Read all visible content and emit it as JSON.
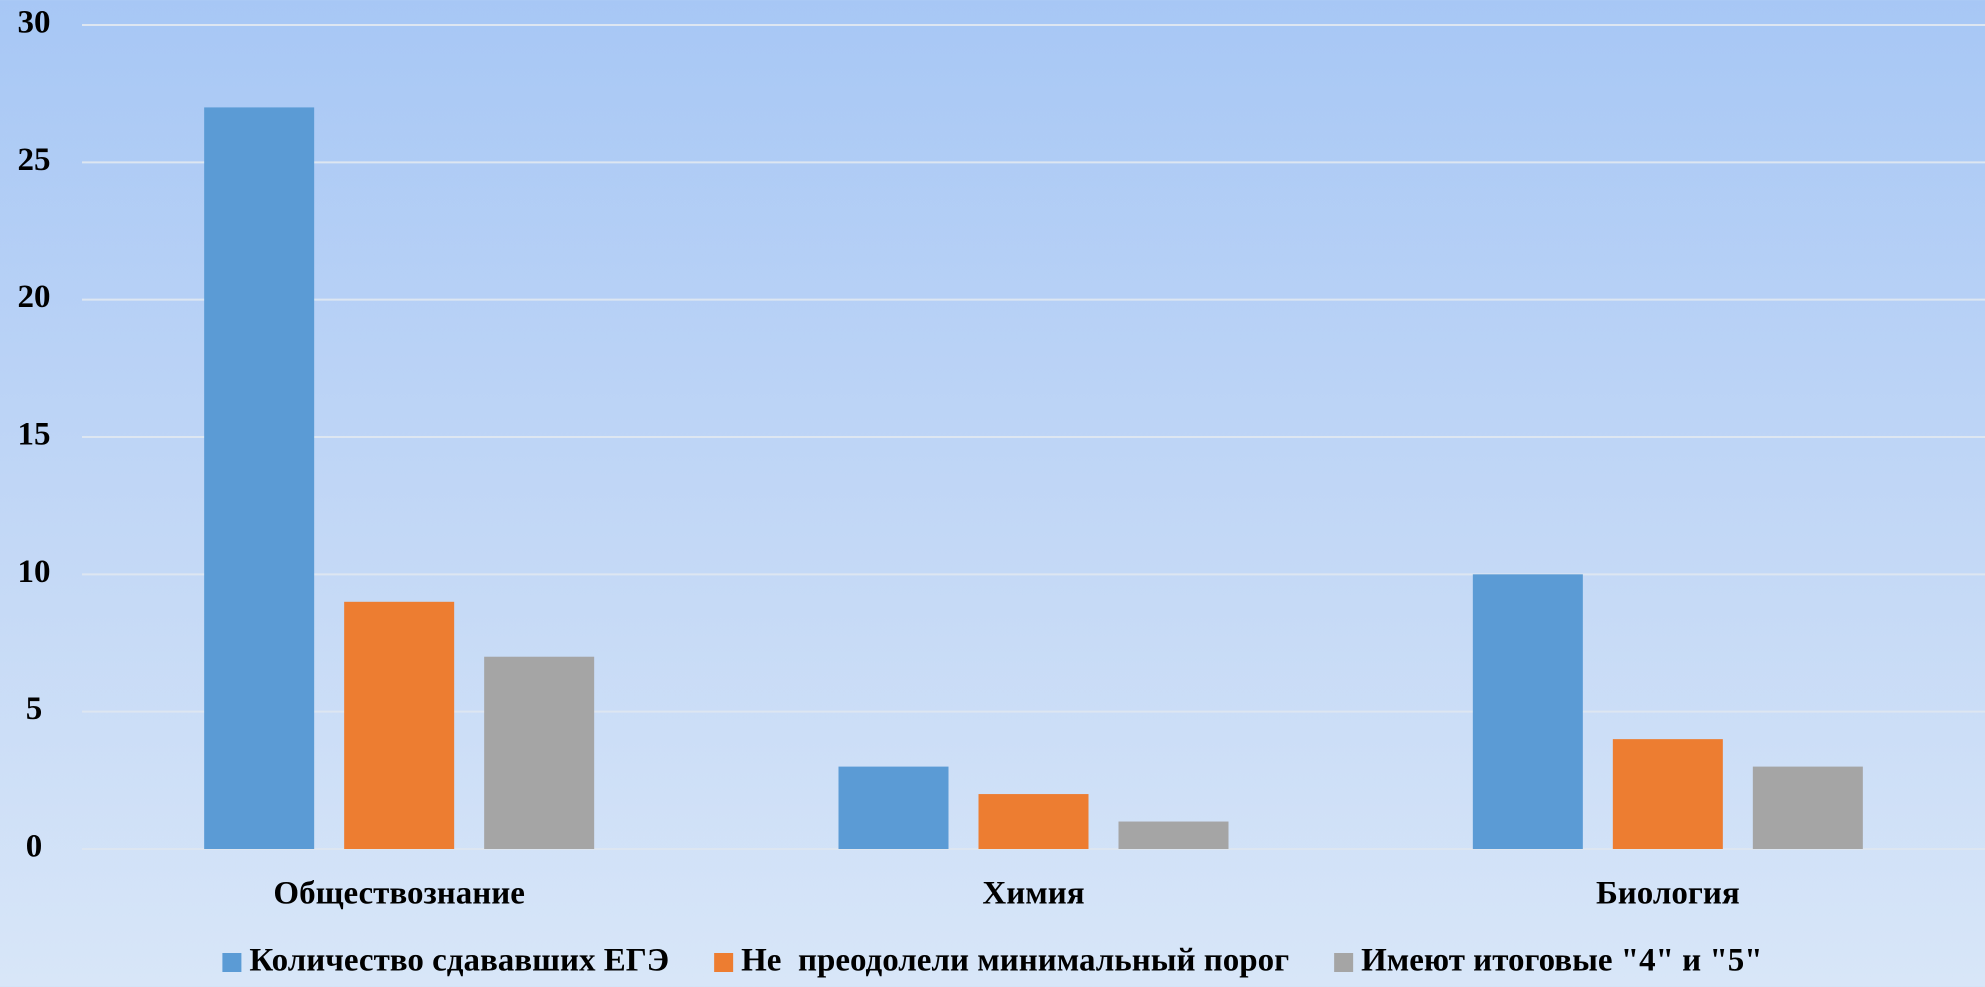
{
  "chart_data": {
    "type": "bar",
    "categories": [
      "Обществознание",
      "Химия",
      "Биология"
    ],
    "series": [
      {
        "name": "Количество сдававших ЕГЭ",
        "color": "#5b9bd5",
        "values": [
          27,
          3,
          10
        ]
      },
      {
        "name": "Не  преодолели минимальный порог",
        "color": "#ed7d31",
        "values": [
          9,
          2,
          4
        ]
      },
      {
        "name": "Имеют итоговые \"4\" и \"5\"",
        "color": "#a5a5a5",
        "values": [
          7,
          1,
          3
        ]
      }
    ],
    "ylim": [
      0,
      30
    ],
    "yticks": [
      0,
      5,
      10,
      15,
      20,
      25,
      30
    ],
    "grid": true,
    "legend": "bottom"
  }
}
